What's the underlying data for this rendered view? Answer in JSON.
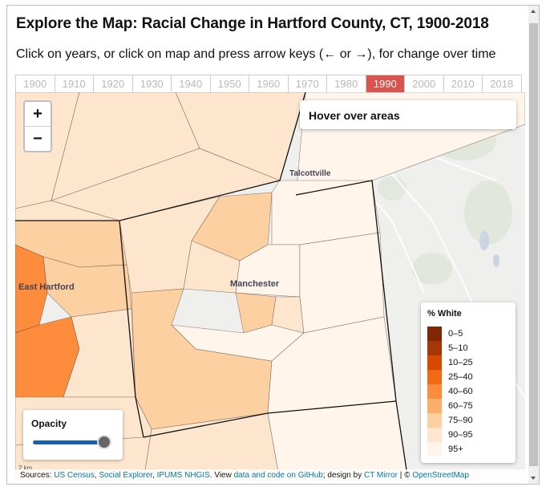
{
  "title": "Explore the Map: Racial Change in Hartford County, CT, 1900-2018",
  "subtitle": "Click on years, or click on map and press arrow keys (← or →), for change over time",
  "years": [
    "1900",
    "1910",
    "1920",
    "1930",
    "1940",
    "1950",
    "1960",
    "1970",
    "1980",
    "1990",
    "2000",
    "2010",
    "2018"
  ],
  "active_year": "1990",
  "zoom": {
    "in_label": "+",
    "out_label": "−"
  },
  "hover_text": "Hover over areas",
  "places": {
    "talcottville": "Talcottville",
    "east_hartford": "East Hartford",
    "manchester": "Manchester"
  },
  "legend": {
    "title": "% White",
    "items": [
      {
        "label": "0–5",
        "color": "#7f2704"
      },
      {
        "label": "5–10",
        "color": "#a63603"
      },
      {
        "label": "10–25",
        "color": "#d94801"
      },
      {
        "label": "25–40",
        "color": "#f16913"
      },
      {
        "label": "40–60",
        "color": "#fd8d3c"
      },
      {
        "label": "60–75",
        "color": "#fdae6b"
      },
      {
        "label": "75–90",
        "color": "#fdd0a2"
      },
      {
        "label": "90–95",
        "color": "#fee6ce"
      },
      {
        "label": "95+",
        "color": "#fff5eb"
      }
    ]
  },
  "opacity": {
    "label": "Opacity",
    "value": 1.0
  },
  "sources": {
    "prefix": "Sources: ",
    "us_census": "US Census",
    "social_explorer": "Social Explorer",
    "ipums": "IPUMS NHGIS",
    "view": ". View ",
    "github": "data and code on GitHub",
    "design": "; design by ",
    "ct_mirror": "CT Mirror",
    "osm_sep": " | © ",
    "osm": "OpenStreetMap"
  },
  "scale_label": "2 km"
}
